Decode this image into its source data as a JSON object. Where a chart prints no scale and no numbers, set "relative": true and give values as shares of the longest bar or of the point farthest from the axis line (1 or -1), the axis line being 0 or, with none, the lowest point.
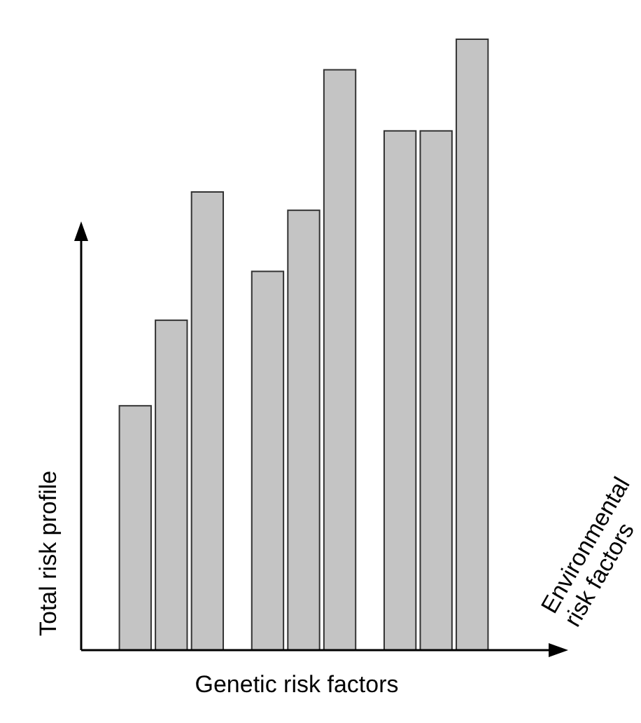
{
  "chart_data": {
    "type": "bar",
    "relative": true,
    "xlabel": "Genetic risk factors",
    "ylabel": "Total risk profile",
    "annotations": [
      "Environmental risk factors"
    ],
    "categories": [
      null,
      null,
      null
    ],
    "series": [
      {
        "color": "#c4c4c4",
        "values": [
          0.4,
          0.62,
          0.85
        ]
      },
      {
        "color": "#c4c4c4",
        "values": [
          0.54,
          0.72,
          0.85
        ]
      },
      {
        "color": "#c4c4c4",
        "values": [
          0.75,
          0.95,
          1.0
        ]
      }
    ]
  }
}
